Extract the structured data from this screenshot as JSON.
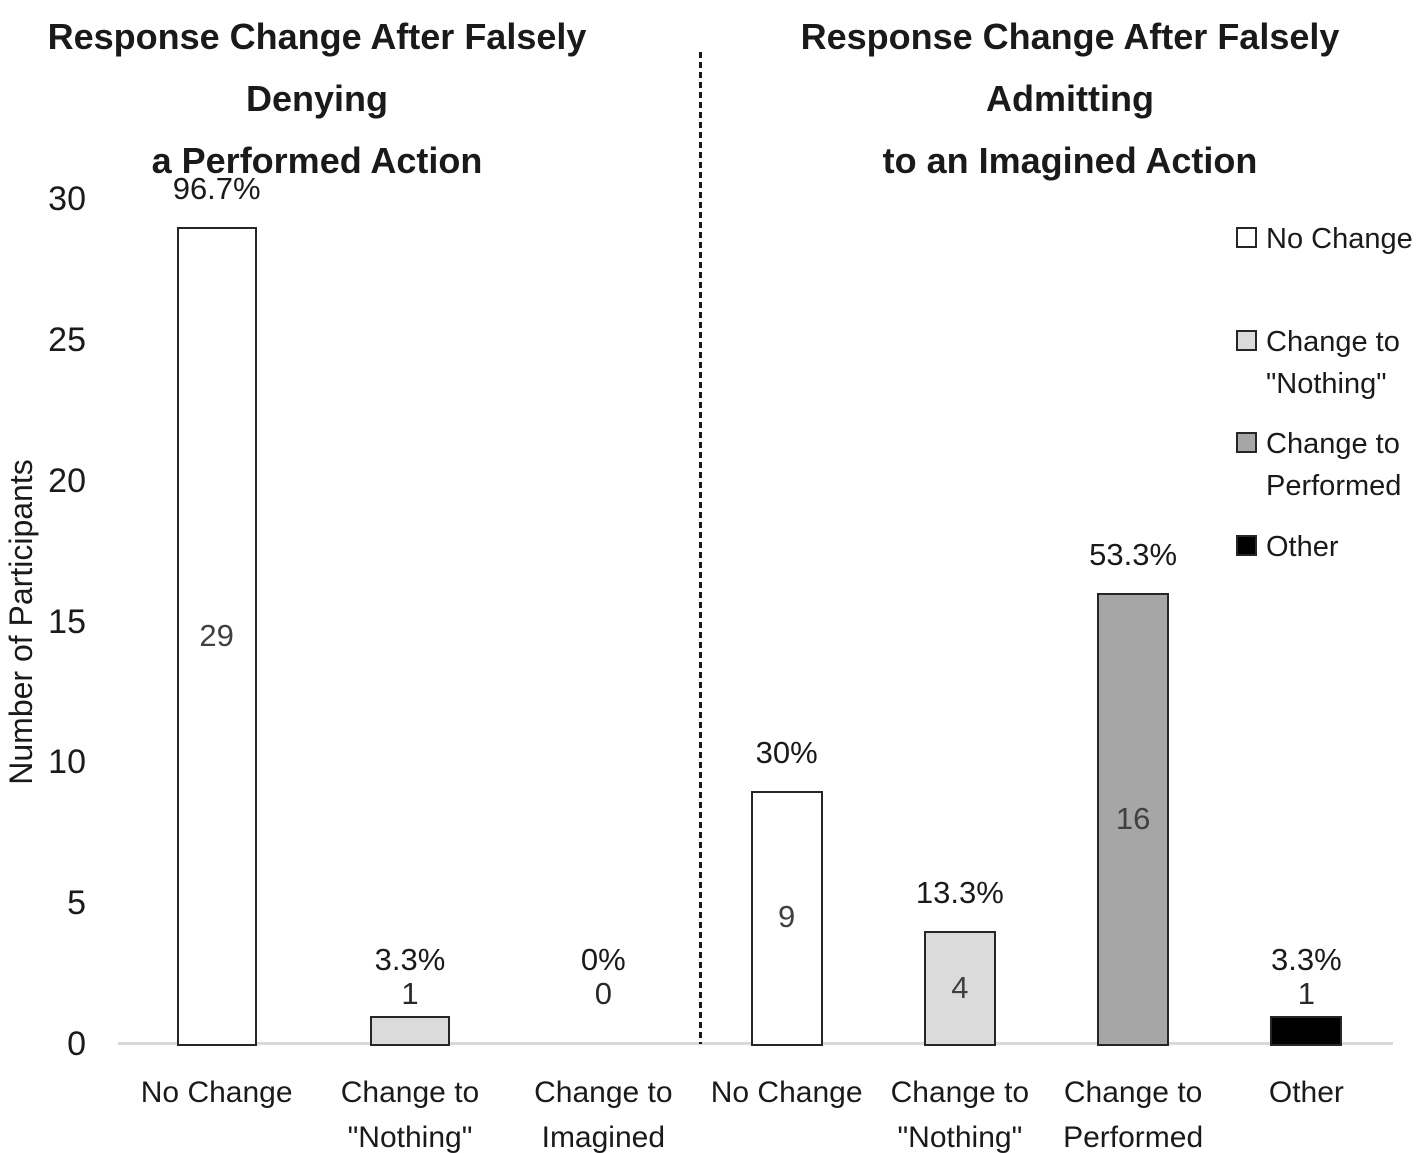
{
  "chart_data": {
    "type": "bar",
    "ylabel": "Number of Participants",
    "ylim": [
      0,
      30
    ],
    "yticks": [
      0,
      5,
      10,
      15,
      20,
      25,
      30
    ],
    "grid": false,
    "legend_position": "right",
    "panels": [
      {
        "title": "Response Change After Falsely\nDenying\na Performed Action",
        "categories": [
          "No Change",
          "Change to\n\"Nothing\"",
          "Change to\nImagined"
        ],
        "values": [
          29,
          1,
          0
        ],
        "percent_labels": [
          "96.7%",
          "3.3%",
          "0%"
        ],
        "bar_colors": [
          "#ffffff",
          "#dbdbdb",
          null
        ]
      },
      {
        "title": "Response Change After Falsely\nAdmitting\nto an Imagined Action",
        "categories": [
          "No Change",
          "Change to\n\"Nothing\"",
          "Change to\nPerformed",
          "Other"
        ],
        "values": [
          9,
          4,
          16,
          1
        ],
        "percent_labels": [
          "30%",
          "13.3%",
          "53.3%",
          "3.3%"
        ],
        "bar_colors": [
          "#ffffff",
          "#dbdbdb",
          "#a6a6a6",
          "#000000"
        ]
      }
    ],
    "legend": [
      {
        "label": "No Change",
        "color": "#ffffff"
      },
      {
        "label": "Change to\n\"Nothing\"",
        "color": "#dbdbdb"
      },
      {
        "label": "Change to\nPerformed",
        "color": "#a6a6a6"
      },
      {
        "label": "Other",
        "color": "#000000"
      }
    ],
    "colors": {
      "bar_border": "#262626",
      "axis_line": "#d9d9d9",
      "divider_line": "#1a1a1a",
      "title_text": "#1a1a1a",
      "count_label_text": "#404040"
    }
  }
}
